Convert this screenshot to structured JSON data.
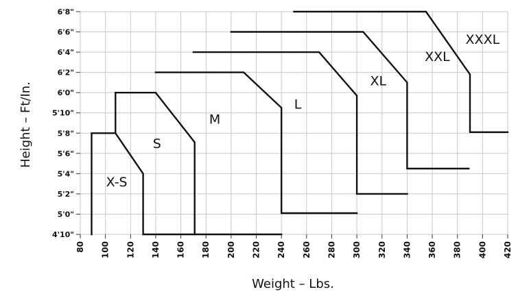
{
  "chart_data": {
    "type": "area",
    "title": "",
    "xlabel": "Weight – Lbs.",
    "ylabel": "Height – Ft/In.",
    "xlim": [
      80,
      420
    ],
    "ylim": [
      58,
      80
    ],
    "x_ticks": [
      80,
      100,
      120,
      140,
      160,
      180,
      200,
      220,
      240,
      260,
      280,
      300,
      320,
      340,
      360,
      380,
      400,
      420
    ],
    "y_ticks": [
      {
        "value": 58,
        "label": "4'10\""
      },
      {
        "value": 60,
        "label": "5'0\""
      },
      {
        "value": 62,
        "label": "5'2\""
      },
      {
        "value": 64,
        "label": "5'4\""
      },
      {
        "value": 66,
        "label": "5'6\""
      },
      {
        "value": 68,
        "label": "5'8\""
      },
      {
        "value": 70,
        "label": "5'10\""
      },
      {
        "value": 72,
        "label": "6'0\""
      },
      {
        "value": 74,
        "label": "6'2\""
      },
      {
        "value": 76,
        "label": "6'4\""
      },
      {
        "value": 78,
        "label": "6'6\""
      },
      {
        "value": 80,
        "label": "6'8\""
      }
    ],
    "grid": true,
    "series": [
      {
        "name": "XXXL",
        "label_pos": [
          400,
          77.3
        ],
        "points": [
          [
            250,
            80
          ],
          [
            355,
            80
          ],
          [
            390,
            73.8
          ],
          [
            390,
            68.1
          ],
          [
            420,
            68.1
          ]
        ]
      },
      {
        "name": "XXL",
        "label_pos": [
          364,
          75.6
        ],
        "points": [
          [
            200,
            78
          ],
          [
            305,
            78
          ],
          [
            340,
            73
          ],
          [
            340,
            64.5
          ],
          [
            389,
            64.5
          ]
        ]
      },
      {
        "name": "XL",
        "label_pos": [
          317,
          73.2
        ],
        "points": [
          [
            170,
            76
          ],
          [
            270,
            76
          ],
          [
            300,
            71.7
          ],
          [
            300,
            62
          ],
          [
            340,
            62
          ]
        ]
      },
      {
        "name": "L",
        "label_pos": [
          253,
          70.9
        ],
        "points": [
          [
            140,
            74
          ],
          [
            210,
            74
          ],
          [
            240,
            70.5
          ],
          [
            240,
            60.1
          ],
          [
            300,
            60.1
          ]
        ]
      },
      {
        "name": "M",
        "label_pos": [
          187,
          69.4
        ],
        "points": [
          [
            108,
            72
          ],
          [
            140,
            72
          ],
          [
            171,
            67.1
          ],
          [
            171,
            58
          ],
          [
            240,
            58
          ]
        ]
      },
      {
        "name": "S",
        "label_pos": [
          141,
          67
        ],
        "points": [
          [
            108,
            68
          ],
          [
            108,
            72
          ]
        ]
      },
      {
        "name": "X-S",
        "label_pos": [
          109,
          63.2
        ],
        "points": [
          [
            89,
            58
          ],
          [
            89,
            68
          ],
          [
            108,
            68
          ],
          [
            130,
            64
          ],
          [
            130,
            58
          ],
          [
            171,
            58
          ]
        ]
      }
    ]
  }
}
